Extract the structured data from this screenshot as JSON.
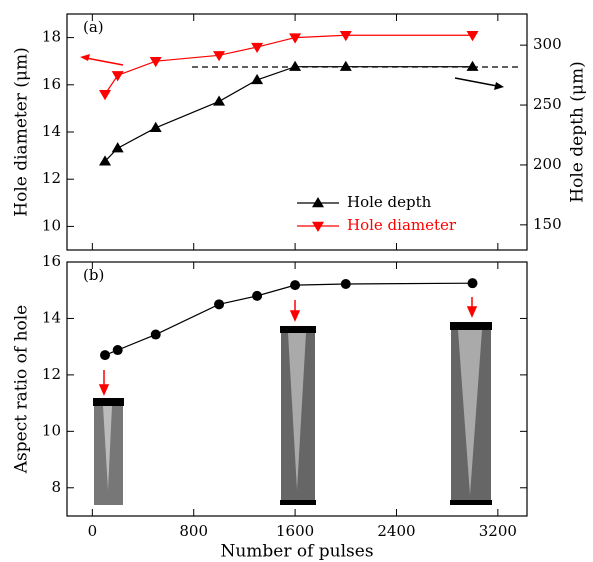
{
  "chart_data": [
    {
      "type": "line",
      "panel_label": "(a)",
      "ylabel": "Hole diameter (μm)",
      "y2label": "Hole depth (μm)",
      "x": [
        100,
        200,
        500,
        1000,
        1300,
        1600,
        2000,
        3000
      ],
      "xlim": [
        -200,
        3430
      ],
      "xticks": [
        0,
        800,
        1600,
        2400,
        3200
      ],
      "ylim": [
        9,
        19
      ],
      "yticks": [
        10,
        12,
        14,
        16,
        18
      ],
      "y2lim": [
        129,
        326
      ],
      "y2ticks": [
        150,
        200,
        250,
        300
      ],
      "legend": "lower right",
      "series": [
        {
          "name": "Hole depth",
          "color": "#000000",
          "marker": "triangle-up",
          "axis": "y2",
          "values": [
            203,
            214,
            231,
            253,
            271,
            282,
            282,
            282
          ]
        },
        {
          "name": "Hole diameter",
          "color": "#ff0000",
          "marker": "triangle-down",
          "values": [
            15.6,
            16.4,
            17.0,
            17.25,
            17.6,
            18.0,
            18.1,
            18.1
          ]
        }
      ]
    },
    {
      "type": "line",
      "panel_label": "(b)",
      "ylabel": "Aspect ratio of hole",
      "xlabel": "Number of pulses",
      "x": [
        100,
        200,
        500,
        1000,
        1300,
        1600,
        2000,
        3000
      ],
      "xlim": [
        -200,
        3430
      ],
      "xticks": [
        0,
        800,
        1600,
        2400,
        3200
      ],
      "ylim": [
        7,
        16
      ],
      "yticks": [
        8,
        10,
        12,
        14,
        16
      ],
      "series": [
        {
          "color": "#000000",
          "marker": "circle",
          "values": [
            12.7,
            12.88,
            13.43,
            14.5,
            14.8,
            15.18,
            15.22,
            15.25
          ]
        }
      ]
    }
  ]
}
